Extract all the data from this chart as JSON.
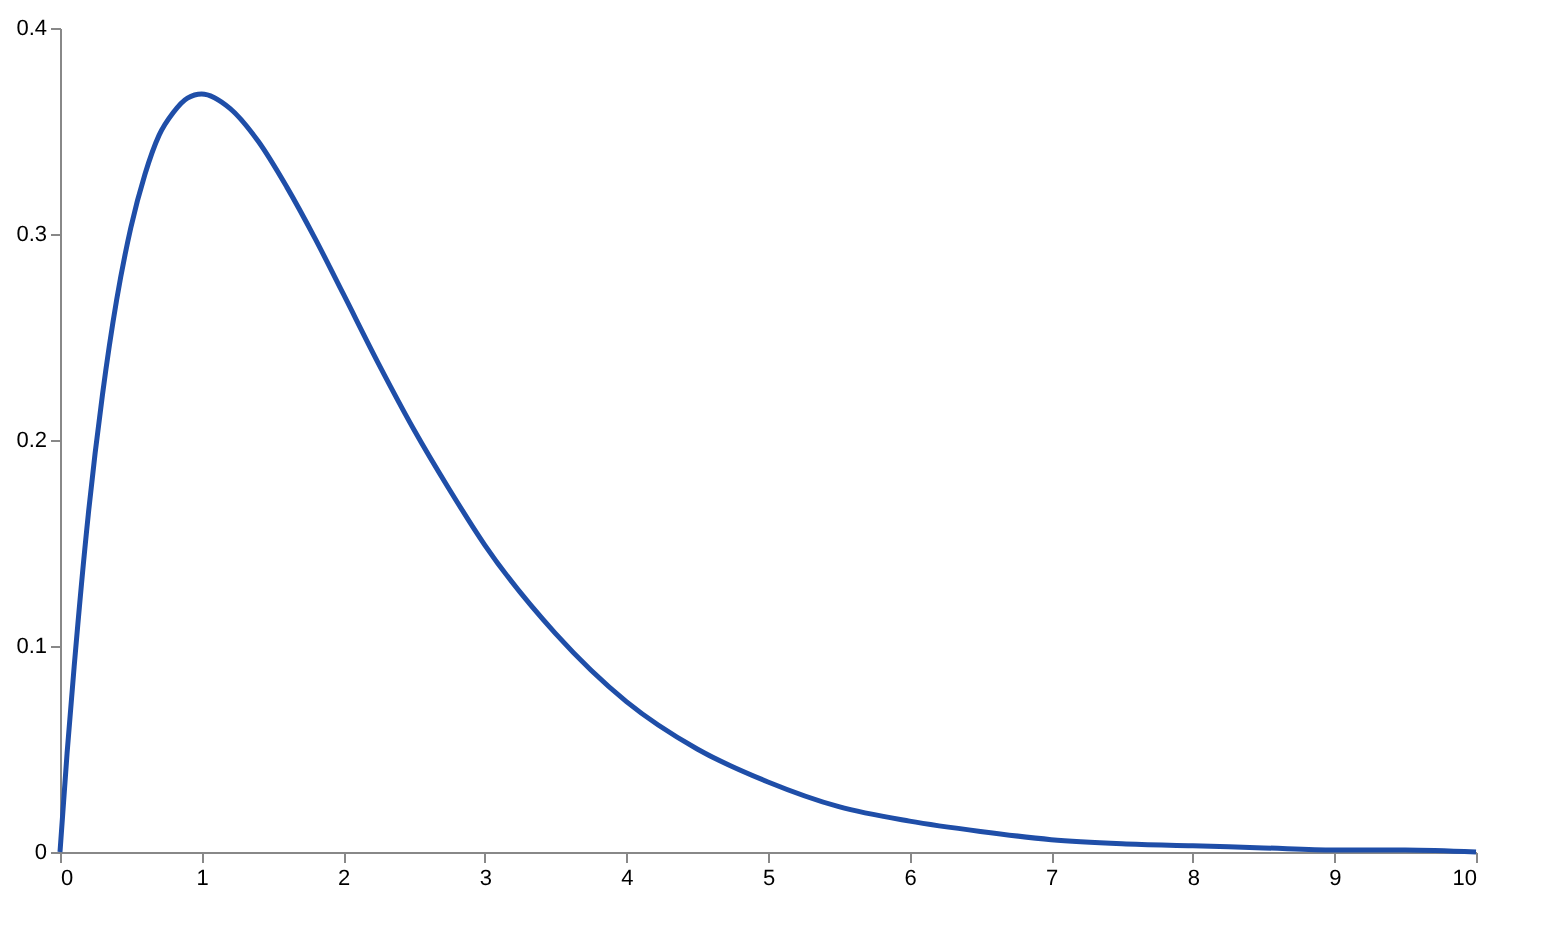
{
  "chart_data": {
    "type": "line",
    "x": [
      0,
      0.05,
      0.1,
      0.2,
      0.3,
      0.4,
      0.5,
      0.6,
      0.7,
      0.8,
      0.9,
      1.0,
      1.2,
      1.4,
      1.6,
      1.8,
      2.0,
      2.25,
      2.5,
      2.75,
      3,
      3.5,
      4,
      4.5,
      5,
      5.5,
      6,
      6.5,
      7,
      7.5,
      8,
      8.5,
      9,
      9.5,
      10
    ],
    "series": [
      {
        "color": "#1f4ea8",
        "values": [
          0,
          0.048,
          0.09,
          0.164,
          0.222,
          0.268,
          0.303,
          0.329,
          0.348,
          0.359,
          0.366,
          0.368,
          0.361,
          0.345,
          0.323,
          0.298,
          0.271,
          0.237,
          0.205,
          0.176,
          0.149,
          0.106,
          0.073,
          0.05,
          0.034,
          0.022,
          0.015,
          0.01,
          0.006,
          0.004,
          0.003,
          0.002,
          0.001,
          0.001,
          0
        ]
      }
    ],
    "xlim": [
      0,
      10
    ],
    "xticks": [
      0,
      1,
      2,
      3,
      4,
      5,
      6,
      7,
      8,
      9,
      10
    ],
    "ylim": [
      0,
      0.4
    ],
    "yticks": [
      0,
      0.1,
      0.2,
      0.3,
      0.4
    ],
    "grid": false,
    "marker": "none",
    "line_style": "solid"
  }
}
